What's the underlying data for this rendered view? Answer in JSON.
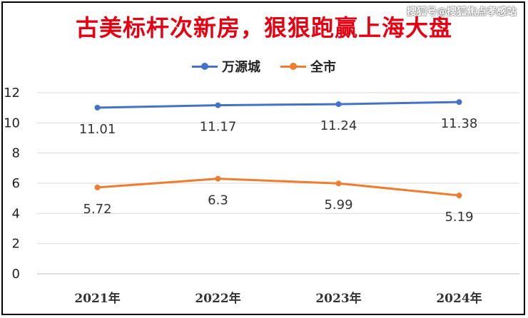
{
  "header": {
    "title": "古美标杆次新房，狠狠跑赢上海大盘",
    "watermark": "搜狐号@搜狐焦点孝感站"
  },
  "chart_data": {
    "type": "line",
    "title": "古美标杆次新房，狠狠跑赢上海大盘",
    "xlabel": "",
    "ylabel": "",
    "categories": [
      "2021年",
      "2022年",
      "2023年",
      "2024年"
    ],
    "ylim": [
      0,
      12
    ],
    "yticks": [
      0,
      2,
      4,
      6,
      8,
      10,
      12
    ],
    "grid": true,
    "legend_position": "top",
    "series": [
      {
        "name": "万源城",
        "color": "#4472c4",
        "values": [
          11.01,
          11.17,
          11.24,
          11.38
        ],
        "labels": [
          "11.01",
          "11.17",
          "11.24",
          "11.38"
        ]
      },
      {
        "name": "全市",
        "color": "#ed7d31",
        "values": [
          5.72,
          6.3,
          5.99,
          5.19
        ],
        "labels": [
          "5.72",
          "6.3",
          "5.99",
          "5.19"
        ]
      }
    ]
  }
}
